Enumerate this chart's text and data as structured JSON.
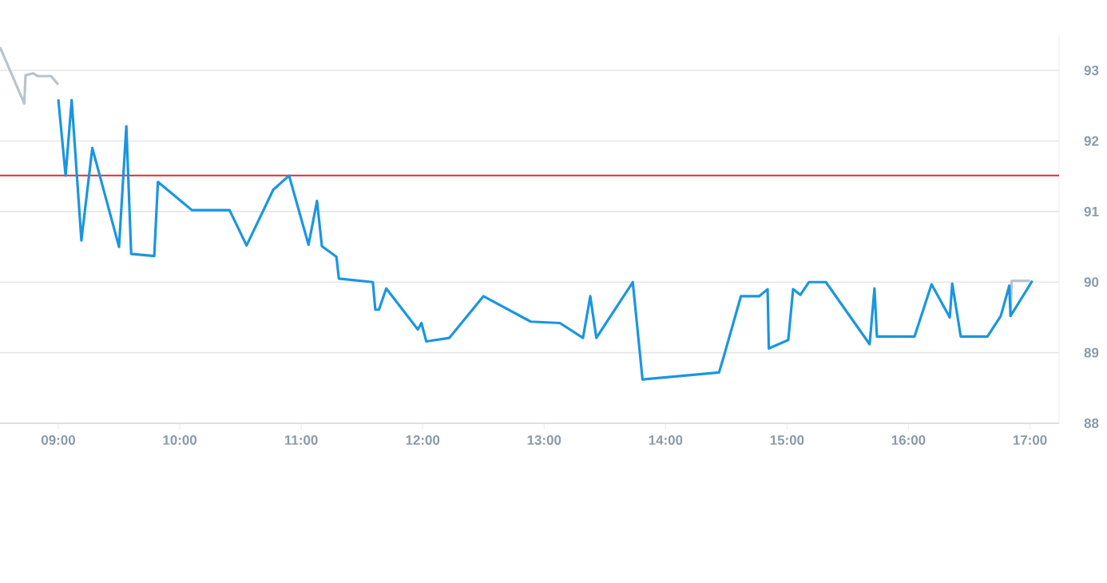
{
  "chart_data": {
    "type": "line",
    "xlim": [
      8.52,
      17.24
    ],
    "ylim": [
      88,
      93.5
    ],
    "xticks": [
      {
        "value": 9,
        "label": "09:00"
      },
      {
        "value": 10,
        "label": "10:00"
      },
      {
        "value": 11,
        "label": "11:00"
      },
      {
        "value": 12,
        "label": "12:00"
      },
      {
        "value": 13,
        "label": "13:00"
      },
      {
        "value": 14,
        "label": "14:00"
      },
      {
        "value": 15,
        "label": "15:00"
      },
      {
        "value": 16,
        "label": "16:00"
      },
      {
        "value": 17,
        "label": "17:00"
      }
    ],
    "yticks": [
      88,
      89,
      90,
      91,
      92,
      93
    ],
    "grid": "y",
    "marker": "none",
    "line_style": "solid",
    "ref_lines": [
      {
        "axis": "y",
        "value": 91.51,
        "color": "#d9302c"
      }
    ],
    "series": [
      {
        "color": "#b8c4cc",
        "x": [
          8.52,
          8.72,
          8.73,
          8.79,
          8.83,
          8.94,
          9.0
        ],
        "values": [
          93.33,
          92.53,
          92.93,
          92.96,
          92.92,
          92.92,
          92.8
        ]
      },
      {
        "color": "#b8c4cc",
        "x": [
          16.84,
          16.85,
          17.0
        ],
        "values": [
          89.52,
          90.02,
          90.02
        ]
      },
      {
        "color": "#1a96e0",
        "x": [
          9.0,
          9.06,
          9.11,
          9.19,
          9.28,
          9.5,
          9.56,
          9.6,
          9.79,
          9.82,
          10.1,
          10.41,
          10.55,
          10.77,
          10.9,
          11.06,
          11.13,
          11.17,
          11.29,
          11.31,
          11.59,
          11.61,
          11.64,
          11.7,
          11.96,
          11.99,
          12.03,
          12.22,
          12.5,
          12.89,
          13.13,
          13.32,
          13.38,
          13.43,
          13.73,
          13.81,
          14.44,
          14.48,
          14.62,
          14.77,
          14.84,
          14.85,
          15.01,
          15.05,
          15.11,
          15.18,
          15.32,
          15.68,
          15.72,
          15.74,
          16.05,
          16.19,
          16.34,
          16.36,
          16.43,
          16.65,
          16.76,
          16.83,
          16.84,
          17.02
        ],
        "values": [
          92.59,
          91.51,
          92.58,
          90.59,
          91.9,
          90.5,
          92.21,
          90.4,
          90.37,
          91.42,
          91.02,
          91.02,
          90.52,
          91.31,
          91.51,
          90.53,
          91.15,
          90.51,
          90.36,
          90.05,
          90.0,
          89.61,
          89.61,
          89.91,
          89.33,
          89.42,
          89.16,
          89.21,
          89.8,
          89.44,
          89.42,
          89.21,
          89.8,
          89.21,
          90.0,
          88.62,
          88.72,
          88.95,
          89.8,
          89.8,
          89.9,
          89.06,
          89.18,
          89.9,
          89.82,
          90.0,
          90.0,
          89.12,
          89.91,
          89.23,
          89.23,
          89.97,
          89.5,
          89.98,
          89.23,
          89.23,
          89.52,
          89.95,
          89.52,
          90.02
        ]
      }
    ]
  }
}
